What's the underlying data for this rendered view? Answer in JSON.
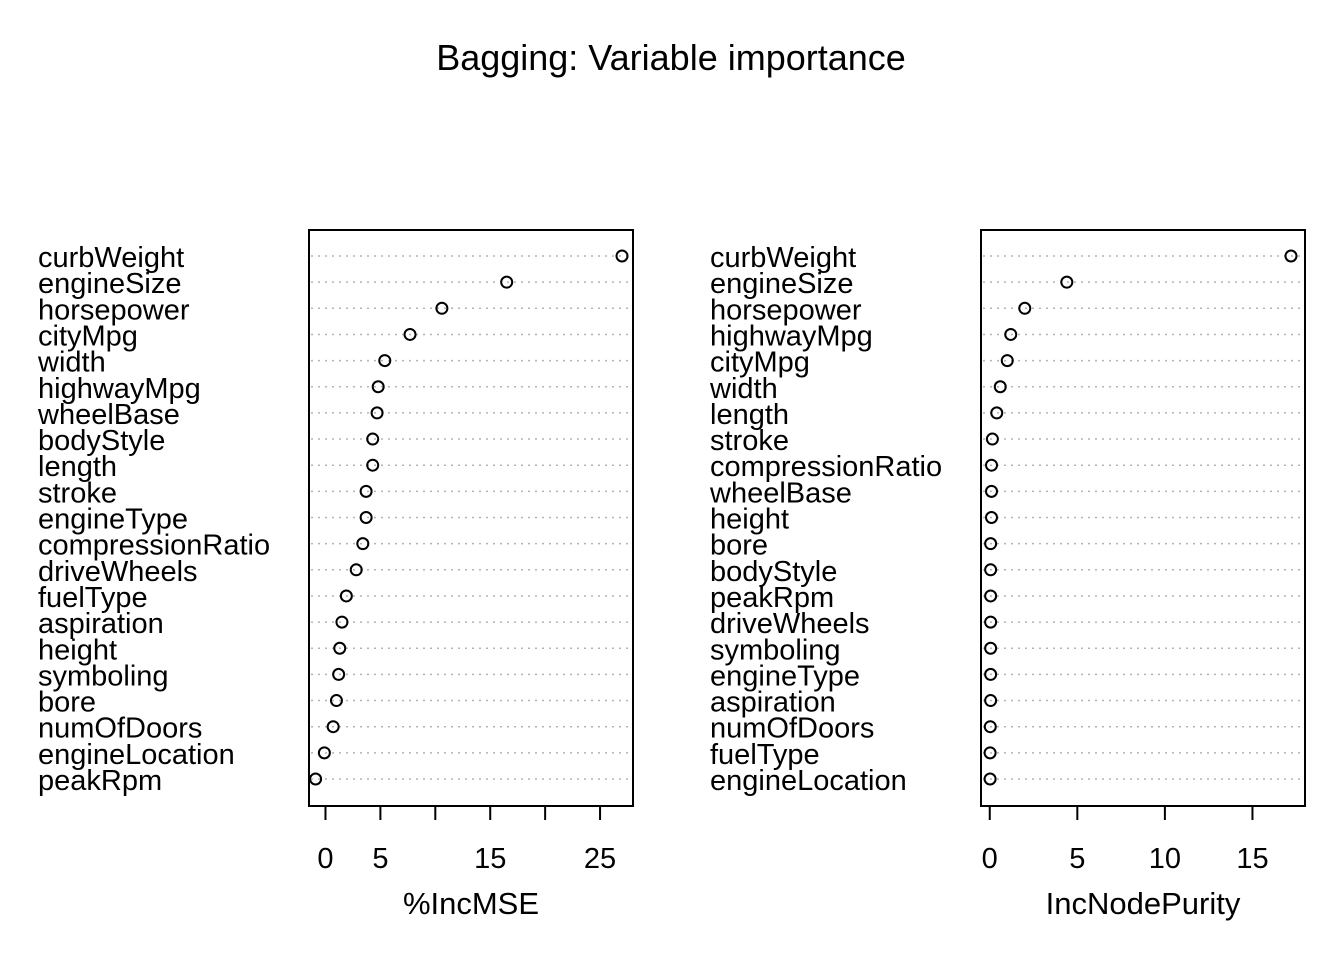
{
  "title": "Bagging: Variable importance",
  "chart_data": [
    {
      "type": "scatter",
      "variant": "dotchart",
      "xlabel": "%IncMSE",
      "ylabel": "",
      "xlim": [
        -1.5,
        28
      ],
      "ticks": [
        0,
        5,
        10,
        15,
        20,
        25
      ],
      "tick_labels": [
        "0",
        "5",
        "",
        "15",
        "",
        "25"
      ],
      "grid": "dotted horizontal",
      "labels": [
        "curbWeight",
        "engineSize",
        "horsepower",
        "cityMpg",
        "width",
        "highwayMpg",
        "wheelBase",
        "bodyStyle",
        "length",
        "stroke",
        "engineType",
        "compressionRatio",
        "driveWheels",
        "fuelType",
        "aspiration",
        "height",
        "symboling",
        "bore",
        "numOfDoors",
        "engineLocation",
        "peakRpm"
      ],
      "values": [
        27.0,
        16.5,
        10.6,
        7.7,
        5.4,
        4.8,
        4.7,
        4.3,
        4.3,
        3.7,
        3.7,
        3.4,
        2.8,
        1.9,
        1.5,
        1.3,
        1.2,
        1.0,
        0.7,
        -0.1,
        -0.9
      ]
    },
    {
      "type": "scatter",
      "variant": "dotchart",
      "xlabel": "IncNodePurity",
      "ylabel": "",
      "xlim": [
        -0.5,
        18
      ],
      "ticks": [
        0,
        5,
        10,
        15
      ],
      "tick_labels": [
        "0",
        "5",
        "10",
        "15"
      ],
      "grid": "dotted horizontal",
      "labels": [
        "curbWeight",
        "engineSize",
        "horsepower",
        "highwayMpg",
        "cityMpg",
        "width",
        "length",
        "stroke",
        "compressionRatio",
        "wheelBase",
        "height",
        "bore",
        "bodyStyle",
        "peakRpm",
        "driveWheels",
        "symboling",
        "engineType",
        "aspiration",
        "numOfDoors",
        "fuelType",
        "engineLocation"
      ],
      "values": [
        17.2,
        4.4,
        2.0,
        1.2,
        1.0,
        0.6,
        0.4,
        0.15,
        0.1,
        0.1,
        0.1,
        0.05,
        0.05,
        0.05,
        0.05,
        0.05,
        0.05,
        0.05,
        0.03,
        0.02,
        0.02
      ]
    }
  ]
}
